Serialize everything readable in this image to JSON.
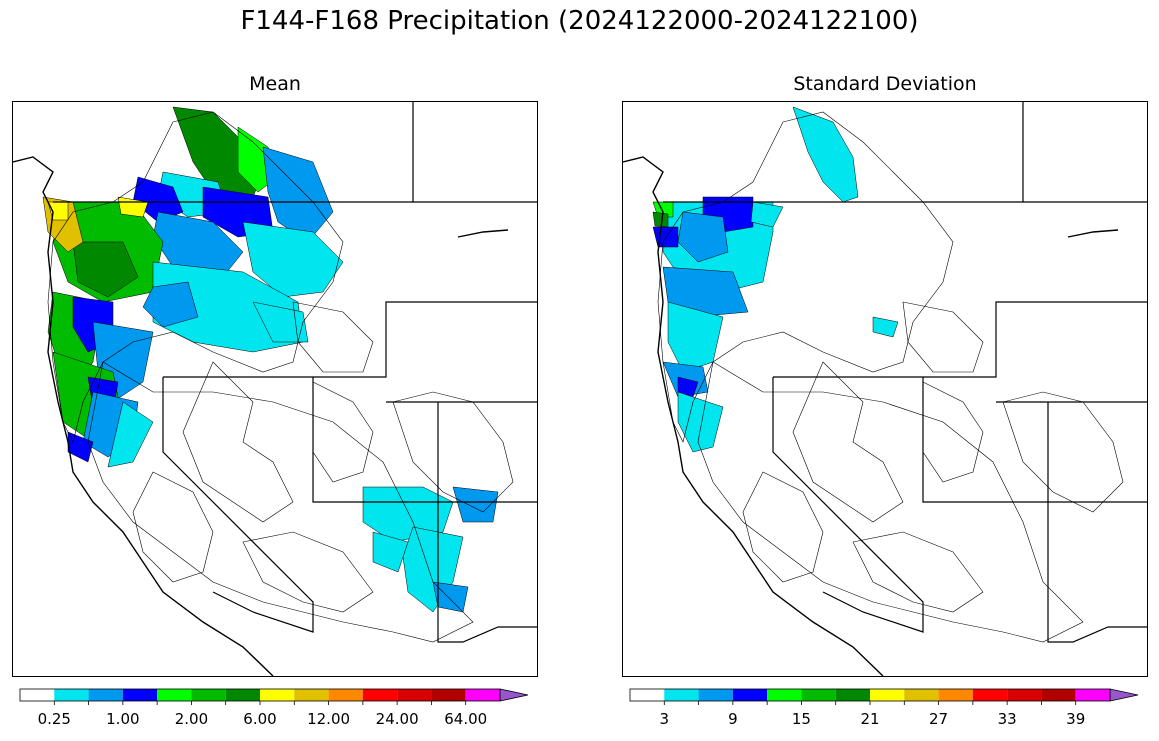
{
  "title": "F144-F168 Precipitation (2024122000-2024122100)",
  "panels": [
    {
      "id": "mean",
      "title": "Mean"
    },
    {
      "id": "std",
      "title": "Standard Deviation"
    }
  ],
  "colorbar_mean": {
    "colors": [
      "#ffffff",
      "#00e5ee",
      "#0099f0",
      "#0000ff",
      "#00ff00",
      "#00bb00",
      "#008800",
      "#ffff00",
      "#e0c000",
      "#ff8800",
      "#ff0000",
      "#d80000",
      "#b00000",
      "#ff00ff",
      "#9955cc"
    ],
    "tick_labels": [
      "0.25",
      "1.00",
      "2.00",
      "6.00",
      "12.00",
      "24.00",
      "64.00"
    ]
  },
  "colorbar_std": {
    "colors": [
      "#ffffff",
      "#00e5ee",
      "#0099f0",
      "#0000ff",
      "#00ff00",
      "#00bb00",
      "#008800",
      "#ffff00",
      "#e0c000",
      "#ff8800",
      "#ff0000",
      "#d80000",
      "#b00000",
      "#ff00ff",
      "#9955cc"
    ],
    "tick_labels": [
      "3",
      "9",
      "15",
      "21",
      "27",
      "33",
      "39"
    ]
  }
}
